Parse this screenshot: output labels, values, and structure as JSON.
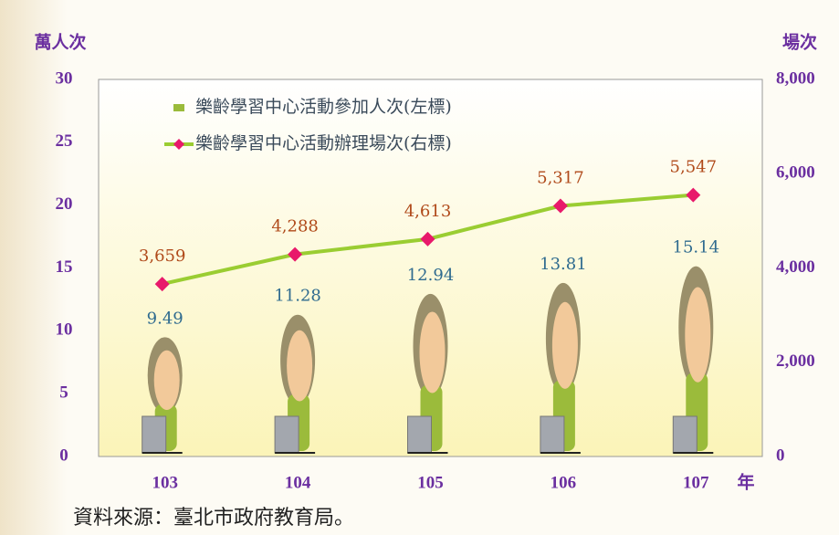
{
  "chart_data": {
    "type": "combo",
    "y_label": "萬人次",
    "y2_label": "場次",
    "x_label": "年",
    "categories": [
      "103",
      "104",
      "105",
      "106",
      "107"
    ],
    "series": [
      {
        "name": "樂齡學習中心活動參加人次(左標)",
        "type": "pictograph",
        "color": "#9bbb3b",
        "label_color": "#2f6b8f",
        "values": [
          9.49,
          11.28,
          12.94,
          13.81,
          15.14
        ]
      },
      {
        "name": "樂齡學習中心活動辦理場次(右標)",
        "type": "line",
        "axis": "y2",
        "color": "#9acd32",
        "marker_color": "#e8196b",
        "label_color": "#b04a1a",
        "values": [
          3659,
          4288,
          4613,
          5317,
          5547
        ],
        "value_labels": [
          "3,659",
          "4,288",
          "4,613",
          "5,317",
          "5,547"
        ]
      }
    ],
    "ylim": [
      0,
      30
    ],
    "yticks": [
      0,
      5,
      10,
      15,
      20,
      25,
      30
    ],
    "y2lim": [
      0,
      8000
    ],
    "y2ticks": [
      0,
      {
        "value": 2000,
        "label": "2,000"
      },
      {
        "value": 4000,
        "label": "4,000"
      },
      {
        "value": 6000,
        "label": "6,000"
      },
      {
        "value": 8000,
        "label": "8,000"
      }
    ],
    "source": "資料來源：臺北市政府教育局。"
  }
}
